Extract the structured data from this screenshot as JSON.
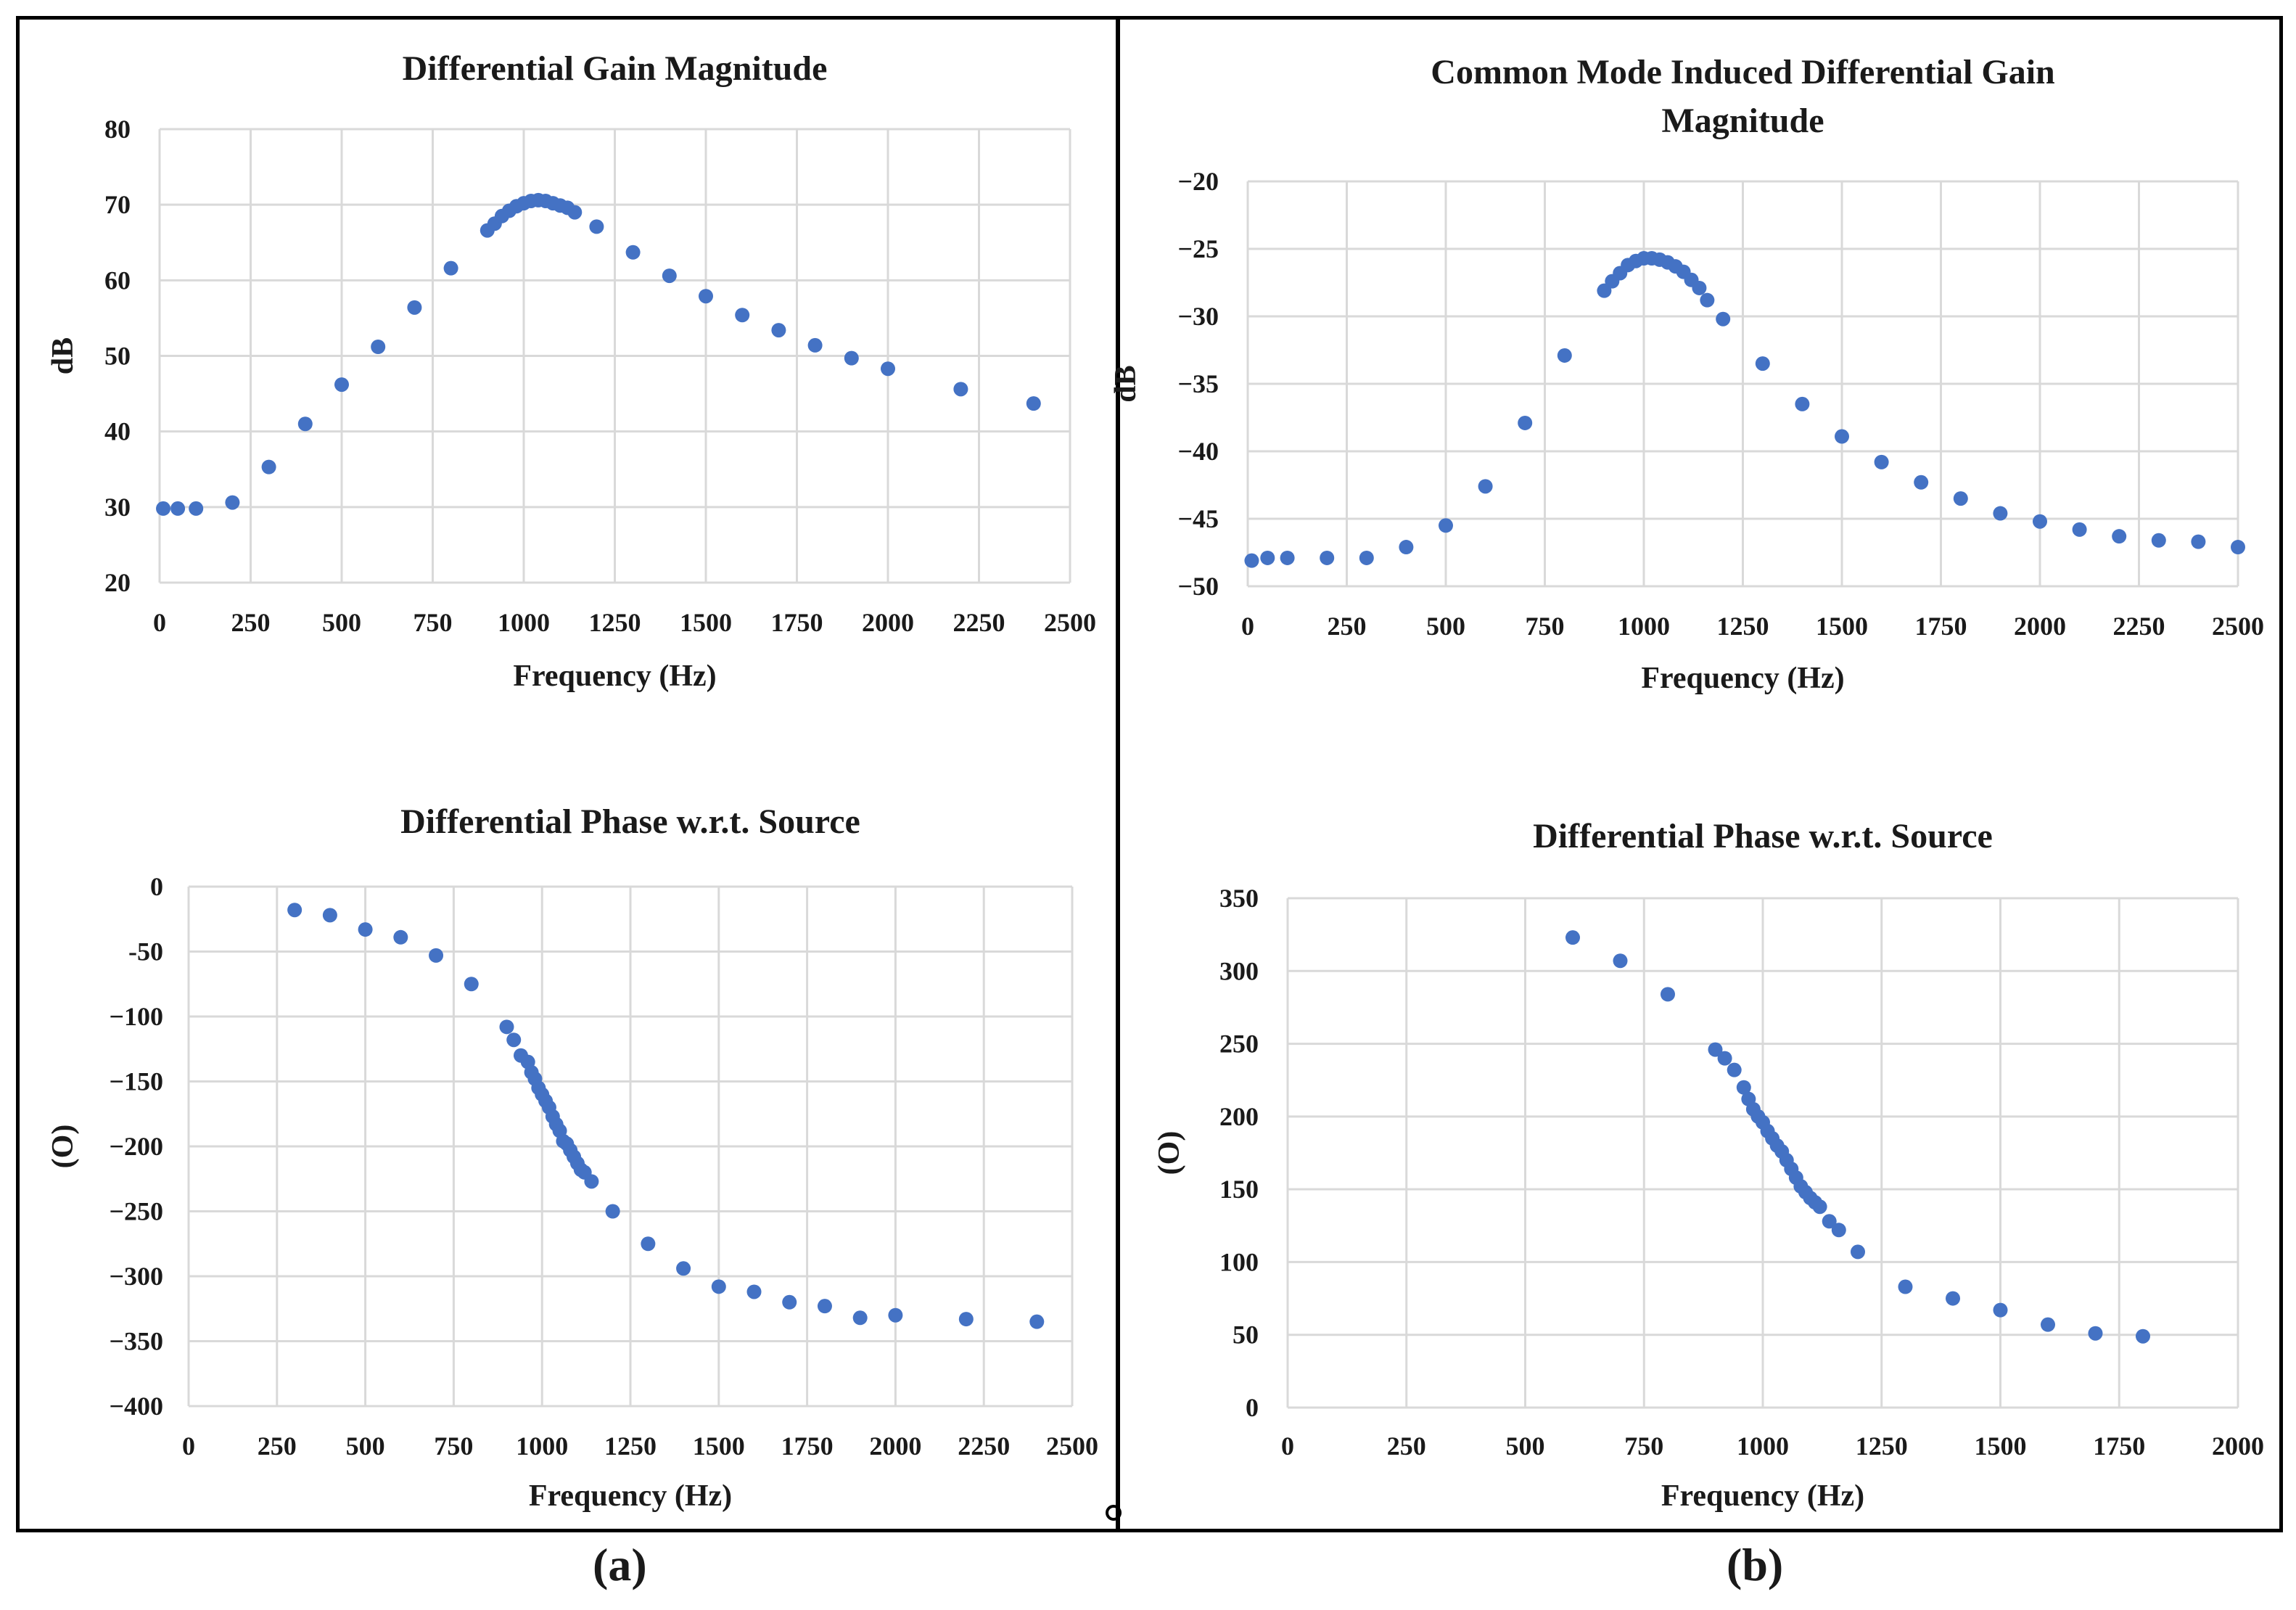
{
  "figure": {
    "label_a": "(a)",
    "label_b": "(b)"
  },
  "chart_data": [
    {
      "type": "scatter",
      "title": "Differential Gain Magnitude",
      "xlabel": "Frequency (Hz)",
      "ylabel": "dB",
      "xlim": [
        0,
        2500
      ],
      "ylim": [
        20,
        80
      ],
      "xticks": [
        0,
        250,
        500,
        750,
        1000,
        1250,
        1500,
        1750,
        2000,
        2250,
        2500
      ],
      "yticks": [
        20,
        30,
        40,
        50,
        60,
        70,
        80
      ],
      "grid": true,
      "series": [
        {
          "x": [
            10,
            50,
            100,
            200,
            300,
            400,
            500,
            600,
            700,
            800,
            900,
            920,
            940,
            960,
            980,
            1000,
            1020,
            1040,
            1060,
            1080,
            1100,
            1120,
            1140,
            1200,
            1300,
            1400,
            1500,
            1600,
            1700,
            1800,
            1900,
            2000,
            2200,
            2400
          ],
          "y": [
            29.8,
            29.8,
            29.8,
            30.6,
            35.3,
            41.0,
            46.2,
            51.2,
            56.4,
            61.6,
            66.6,
            67.5,
            68.5,
            69.2,
            69.8,
            70.2,
            70.5,
            70.6,
            70.5,
            70.2,
            69.9,
            69.6,
            69.0,
            67.1,
            63.7,
            60.6,
            57.9,
            55.4,
            53.4,
            51.4,
            49.7,
            48.3,
            45.6,
            43.7
          ]
        }
      ]
    },
    {
      "type": "scatter",
      "title": "Common Mode Induced Differential Gain Magnitude",
      "xlabel": "Frequency (Hz)",
      "ylabel": "dB",
      "xlim": [
        0,
        2500
      ],
      "ylim": [
        -50,
        -20
      ],
      "xticks": [
        0,
        250,
        500,
        750,
        1000,
        1250,
        1500,
        1750,
        2000,
        2250,
        2500
      ],
      "yticks": [
        -50,
        -45,
        -40,
        -35,
        -30,
        -25,
        -20
      ],
      "grid": true,
      "series": [
        {
          "x": [
            10,
            50,
            100,
            200,
            300,
            400,
            500,
            600,
            700,
            800,
            900,
            920,
            940,
            960,
            980,
            1000,
            1020,
            1040,
            1060,
            1080,
            1100,
            1120,
            1140,
            1160,
            1200,
            1300,
            1400,
            1500,
            1600,
            1700,
            1800,
            1900,
            2000,
            2100,
            2200,
            2300,
            2400,
            2500
          ],
          "y": [
            -48.1,
            -47.9,
            -47.9,
            -47.9,
            -47.9,
            -47.1,
            -45.5,
            -42.6,
            -37.9,
            -32.9,
            -28.1,
            -27.4,
            -26.8,
            -26.2,
            -25.9,
            -25.7,
            -25.7,
            -25.8,
            -26.0,
            -26.3,
            -26.7,
            -27.3,
            -27.9,
            -28.8,
            -30.2,
            -33.5,
            -36.5,
            -38.9,
            -40.8,
            -42.3,
            -43.5,
            -44.6,
            -45.2,
            -45.8,
            -46.3,
            -46.6,
            -46.7,
            -47.1
          ]
        }
      ]
    },
    {
      "type": "scatter",
      "title": "Differential Phase w.r.t. Source",
      "xlabel": "Frequency (Hz)",
      "ylabel": "(O)",
      "xlim": [
        0,
        2500
      ],
      "ylim": [
        -400,
        0
      ],
      "xticks": [
        0,
        250,
        500,
        750,
        1000,
        1250,
        1500,
        1750,
        2000,
        2250,
        2500
      ],
      "yticks": [
        -400,
        -350,
        -300,
        -250,
        -200,
        -150,
        -100,
        -50,
        0
      ],
      "ytick_labels": [
        "−400",
        "−350",
        "−300",
        "−250",
        "−200",
        "−150",
        "−100",
        "‑50",
        "0"
      ],
      "grid": true,
      "series": [
        {
          "x": [
            300,
            400,
            500,
            600,
            700,
            800,
            900,
            920,
            940,
            960,
            970,
            980,
            990,
            1000,
            1010,
            1020,
            1030,
            1040,
            1050,
            1060,
            1070,
            1080,
            1090,
            1100,
            1110,
            1120,
            1140,
            1200,
            1300,
            1400,
            1500,
            1600,
            1700,
            1800,
            1900,
            2000,
            2200,
            2400
          ],
          "y": [
            -18,
            -22,
            -33,
            -39,
            -53,
            -75,
            -108,
            -118,
            -130,
            -135,
            -143,
            -148,
            -155,
            -160,
            -165,
            -170,
            -177,
            -183,
            -188,
            -196,
            -198,
            -203,
            -208,
            -213,
            -218,
            -220,
            -227,
            -250,
            -275,
            -294,
            -308,
            -312,
            -320,
            -323,
            -332,
            -330,
            -333,
            -335
          ]
        }
      ]
    },
    {
      "type": "scatter",
      "title": "Differential Phase w.r.t. Source",
      "xlabel": "Frequency (Hz)",
      "ylabel": "(O)",
      "xlim": [
        0,
        2000
      ],
      "ylim": [
        0,
        350
      ],
      "xticks": [
        0,
        250,
        500,
        750,
        1000,
        1250,
        1500,
        1750,
        2000
      ],
      "yticks": [
        0,
        50,
        100,
        150,
        200,
        250,
        300,
        350
      ],
      "grid": true,
      "series": [
        {
          "x": [
            600,
            700,
            800,
            900,
            920,
            940,
            960,
            970,
            980,
            990,
            1000,
            1010,
            1020,
            1030,
            1040,
            1050,
            1060,
            1070,
            1080,
            1090,
            1100,
            1110,
            1120,
            1140,
            1160,
            1200,
            1300,
            1400,
            1500,
            1600,
            1700,
            1800
          ],
          "y": [
            323,
            307,
            284,
            246,
            240,
            232,
            220,
            212,
            205,
            200,
            196,
            190,
            185,
            180,
            176,
            170,
            164,
            158,
            152,
            148,
            144,
            141,
            138,
            128,
            122,
            107,
            83,
            75,
            67,
            57,
            51,
            49
          ]
        }
      ]
    }
  ]
}
